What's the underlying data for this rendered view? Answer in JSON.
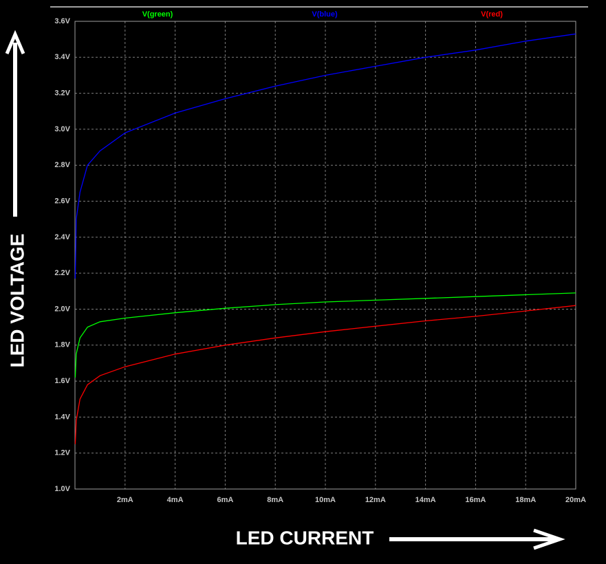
{
  "chart_data": {
    "type": "line",
    "x_label": "LED CURRENT",
    "y_label": "LED VOLTAGE",
    "x": [
      0.01,
      0.05,
      0.2,
      0.5,
      1,
      2,
      4,
      6,
      8,
      10,
      12,
      14,
      16,
      18,
      20
    ],
    "series": [
      {
        "name": "V(green)",
        "color": "#00ff00",
        "values": [
          1.62,
          1.75,
          1.84,
          1.9,
          1.93,
          1.95,
          1.98,
          2.005,
          2.025,
          2.04,
          2.05,
          2.06,
          2.07,
          2.08,
          2.09
        ]
      },
      {
        "name": "V(blue)",
        "color": "#0000ff",
        "values": [
          2.17,
          2.5,
          2.65,
          2.8,
          2.88,
          2.98,
          3.09,
          3.17,
          3.24,
          3.3,
          3.35,
          3.4,
          3.44,
          3.49,
          3.53
        ]
      },
      {
        "name": "V(red)",
        "color": "#ff0000",
        "values": [
          1.25,
          1.38,
          1.5,
          1.58,
          1.63,
          1.68,
          1.75,
          1.8,
          1.84,
          1.875,
          1.905,
          1.935,
          1.96,
          1.99,
          2.02
        ]
      }
    ],
    "xlim": [
      0,
      20
    ],
    "xticks": [
      {
        "value": 2,
        "label": "2mA"
      },
      {
        "value": 4,
        "label": "4mA"
      },
      {
        "value": 6,
        "label": "6mA"
      },
      {
        "value": 8,
        "label": "8mA"
      },
      {
        "value": 10,
        "label": "10mA"
      },
      {
        "value": 12,
        "label": "12mA"
      },
      {
        "value": 14,
        "label": "14mA"
      },
      {
        "value": 16,
        "label": "16mA"
      },
      {
        "value": 18,
        "label": "18mA"
      },
      {
        "value": 20,
        "label": "20mA"
      }
    ],
    "ylim": [
      1.0,
      3.6
    ],
    "yticks": [
      {
        "value": 1.0,
        "label": "1.0V"
      },
      {
        "value": 1.2,
        "label": "1.2V"
      },
      {
        "value": 1.4,
        "label": "1.4V"
      },
      {
        "value": 1.6,
        "label": "1.6V"
      },
      {
        "value": 1.8,
        "label": "1.8V"
      },
      {
        "value": 2.0,
        "label": "2.0V"
      },
      {
        "value": 2.2,
        "label": "2.2V"
      },
      {
        "value": 2.4,
        "label": "2.4V"
      },
      {
        "value": 2.6,
        "label": "2.6V"
      },
      {
        "value": 2.8,
        "label": "2.8V"
      },
      {
        "value": 3.0,
        "label": "3.0V"
      },
      {
        "value": 3.2,
        "label": "3.2V"
      },
      {
        "value": 3.4,
        "label": "3.4V"
      },
      {
        "value": 3.6,
        "label": "3.6V"
      }
    ],
    "grid": true
  }
}
